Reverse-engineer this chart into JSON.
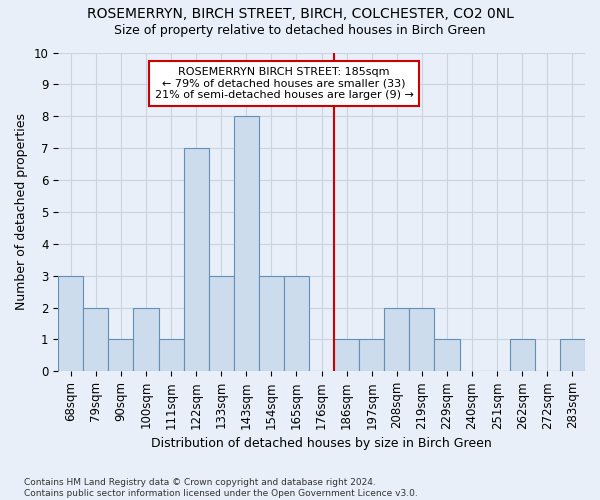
{
  "title1": "ROSEMERRYN, BIRCH STREET, BIRCH, COLCHESTER, CO2 0NL",
  "title2": "Size of property relative to detached houses in Birch Green",
  "xlabel": "Distribution of detached houses by size in Birch Green",
  "ylabel": "Number of detached properties",
  "categories": [
    "68sqm",
    "79sqm",
    "90sqm",
    "100sqm",
    "111sqm",
    "122sqm",
    "133sqm",
    "143sqm",
    "154sqm",
    "165sqm",
    "176sqm",
    "186sqm",
    "197sqm",
    "208sqm",
    "219sqm",
    "229sqm",
    "240sqm",
    "251sqm",
    "262sqm",
    "272sqm",
    "283sqm"
  ],
  "values": [
    3,
    2,
    1,
    2,
    1,
    7,
    3,
    8,
    3,
    3,
    0,
    1,
    1,
    2,
    2,
    1,
    0,
    0,
    1,
    0,
    1
  ],
  "bar_color": "#ccdcec",
  "bar_edge_color": "#6090b8",
  "grid_color": "#c8d4e0",
  "vline_index": 11,
  "vline_color": "#cc0000",
  "annotation_text": "ROSEMERRYN BIRCH STREET: 185sqm\n← 79% of detached houses are smaller (33)\n21% of semi-detached houses are larger (9) →",
  "annotation_box_color": "#ffffff",
  "annotation_border_color": "#cc0000",
  "ylim": [
    0,
    10
  ],
  "yticks": [
    0,
    1,
    2,
    3,
    4,
    5,
    6,
    7,
    8,
    9,
    10
  ],
  "footnote": "Contains HM Land Registry data © Crown copyright and database right 2024.\nContains public sector information licensed under the Open Government Licence v3.0.",
  "bg_color": "#e8eff8",
  "title1_fontsize": 10,
  "title2_fontsize": 9,
  "xlabel_fontsize": 9,
  "ylabel_fontsize": 9,
  "tick_fontsize": 8.5,
  "annot_fontsize": 8
}
